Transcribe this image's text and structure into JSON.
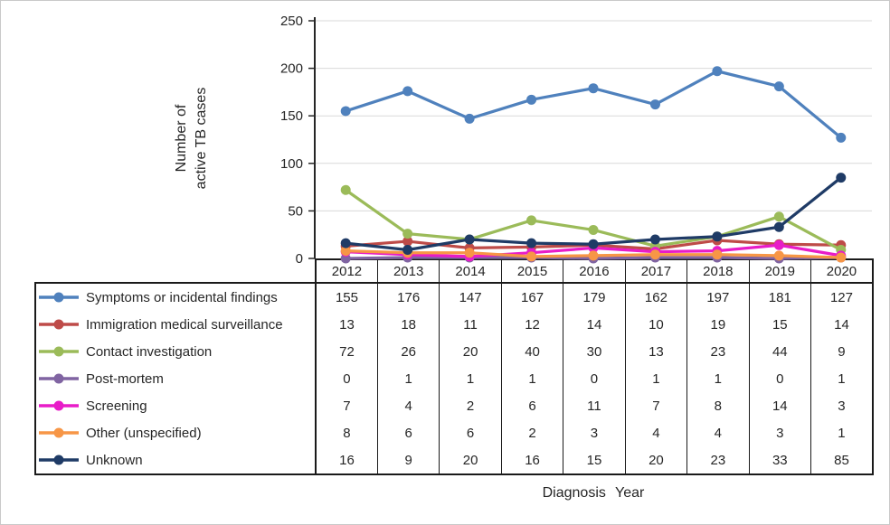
{
  "chart_data": {
    "type": "line",
    "title": "",
    "xlabel": "Diagnosis Year",
    "ylabel": "Number of active TB cases",
    "ylabel_lines": [
      "Number of",
      "active TB cases"
    ],
    "categories": [
      "2012",
      "2013",
      "2014",
      "2015",
      "2016",
      "2017",
      "2018",
      "2019",
      "2020"
    ],
    "ylim": [
      0,
      250
    ],
    "yticks": [
      0,
      50,
      100,
      150,
      200,
      250
    ],
    "grid": true,
    "grid_color": "#D9D9D9",
    "axis_color": "#262626",
    "legend_position": "table-left",
    "series": [
      {
        "name": "Symptoms or incidental findings",
        "color": "#4F81BD",
        "values": [
          155,
          176,
          147,
          167,
          179,
          162,
          197,
          181,
          127
        ]
      },
      {
        "name": "Immigration medical surveillance",
        "color": "#BE4B48",
        "values": [
          13,
          18,
          11,
          12,
          14,
          10,
          19,
          15,
          14
        ]
      },
      {
        "name": "Contact investigation",
        "color": "#9BBB59",
        "values": [
          72,
          26,
          20,
          40,
          30,
          13,
          23,
          44,
          9
        ]
      },
      {
        "name": "Post-mortem",
        "color": "#8064A2",
        "values": [
          0,
          1,
          1,
          1,
          0,
          1,
          1,
          0,
          1
        ]
      },
      {
        "name": "Screening",
        "color": "#E81CC8",
        "values": [
          7,
          4,
          2,
          6,
          11,
          7,
          8,
          14,
          3
        ]
      },
      {
        "name": "Other (unspecified)",
        "color": "#F79646",
        "values": [
          8,
          6,
          6,
          2,
          3,
          4,
          4,
          3,
          1
        ]
      },
      {
        "name": "Unknown",
        "color": "#1F3B66",
        "values": [
          16,
          9,
          20,
          16,
          15,
          20,
          23,
          33,
          85
        ]
      }
    ]
  }
}
